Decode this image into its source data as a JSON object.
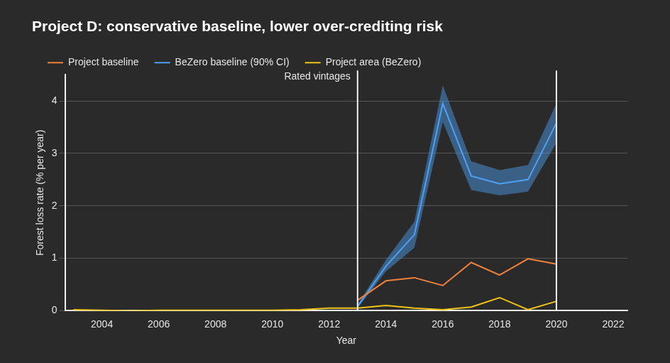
{
  "chart_data": {
    "type": "line",
    "title": "Project D: conservative baseline, lower over-crediting risk",
    "x_label": "Year",
    "y_label": "Forest loss rate (% per year)",
    "x": [
      2003,
      2004,
      2005,
      2006,
      2007,
      2008,
      2009,
      2010,
      2011,
      2012,
      2013,
      2014,
      2015,
      2016,
      2017,
      2018,
      2019,
      2020
    ],
    "series": [
      {
        "name": "Project baseline",
        "color": "#f0803c",
        "values": [
          null,
          null,
          null,
          null,
          null,
          null,
          null,
          null,
          null,
          null,
          0.2,
          0.57,
          0.63,
          0.48,
          0.92,
          0.68,
          0.99,
          0.89
        ]
      },
      {
        "name": "BeZero baseline (90% CI)",
        "color": "#4ea1f5",
        "values": [
          null,
          null,
          null,
          null,
          null,
          null,
          null,
          null,
          null,
          null,
          0.08,
          0.85,
          1.45,
          3.95,
          2.57,
          2.42,
          2.5,
          3.58
        ],
        "ci_lower": [
          null,
          null,
          null,
          null,
          null,
          null,
          null,
          null,
          null,
          null,
          0.05,
          0.75,
          1.2,
          3.6,
          2.3,
          2.2,
          2.27,
          3.2
        ],
        "ci_upper": [
          null,
          null,
          null,
          null,
          null,
          null,
          null,
          null,
          null,
          null,
          0.12,
          0.97,
          1.7,
          4.3,
          2.85,
          2.68,
          2.78,
          3.95
        ]
      },
      {
        "name": "Project area (BeZero)",
        "color": "#f2c318",
        "values": [
          0.02,
          0.01,
          0,
          0.01,
          0.01,
          0.01,
          0.01,
          0.01,
          0.02,
          0.05,
          0.05,
          0.1,
          0.05,
          0.02,
          0.07,
          0.25,
          0.02,
          0.18
        ]
      }
    ],
    "xlim": [
      2002.7,
      2022.5
    ],
    "xticks": [
      2004,
      2006,
      2008,
      2010,
      2012,
      2014,
      2016,
      2018,
      2020,
      2022
    ],
    "ylim": [
      0,
      4.5
    ],
    "yticks": [
      0,
      1,
      2,
      3,
      4
    ],
    "grid": "y",
    "legend": "top-left",
    "vlines": [
      2013,
      2020
    ],
    "annotations": [
      {
        "text": "Rated vintages",
        "x": 2013
      }
    ]
  }
}
